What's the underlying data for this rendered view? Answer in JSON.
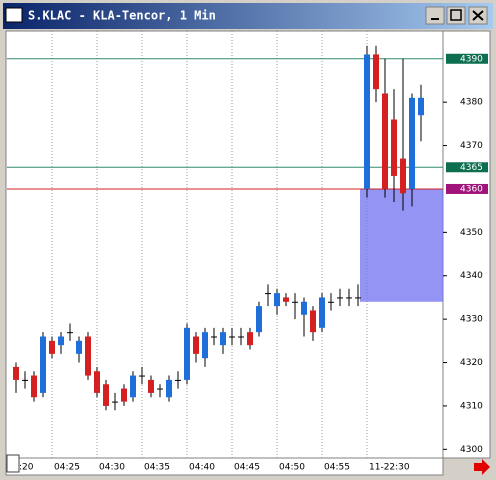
{
  "window": {
    "title": "S.KLAC - KLA-Tencor, 1 Min"
  },
  "chart_data": {
    "type": "candlestick",
    "ylim": [
      4298,
      4396.4
    ],
    "yticks": [
      4300,
      4310,
      4320,
      4330,
      4340,
      4350,
      4370,
      4380
    ],
    "xticks": [
      {
        "value": -1,
        "label": ":20"
      },
      {
        "value": 4,
        "label": "04:25"
      },
      {
        "value": 9,
        "label": "04:30"
      },
      {
        "value": 14,
        "label": "04:35"
      },
      {
        "value": 19,
        "label": "04:40"
      },
      {
        "value": 24,
        "label": "04:45"
      },
      {
        "value": 29,
        "label": "04:50"
      },
      {
        "value": 34,
        "label": "04:55"
      },
      {
        "value": 39,
        "label": "11-22:30"
      }
    ],
    "up_color": "#1e6fd9",
    "down_color": "#d42020",
    "open": [
      4319,
      4316,
      4317,
      4313,
      4325,
      4324,
      4327,
      4322,
      4326,
      4318,
      4315,
      4311,
      4314,
      4312,
      4317,
      4316,
      4314,
      4312,
      4316,
      4316,
      4326,
      4321,
      4326,
      4324,
      4326,
      4326,
      4327,
      4327,
      4336,
      4333,
      4335,
      4334,
      4331,
      4332,
      4328,
      4334,
      4335,
      4335,
      4335,
      4360,
      4391,
      4382,
      4376,
      4367,
      4360,
      4377
    ],
    "high": [
      4320,
      4318,
      4318,
      4327,
      4326,
      4327,
      4329,
      4326,
      4327,
      4319,
      4316,
      4313,
      4315,
      4318,
      4319,
      4317,
      4315,
      4317,
      4318,
      4329,
      4327,
      4328,
      4328,
      4328,
      4328,
      4328,
      4328,
      4334,
      4338,
      4337,
      4336,
      4336,
      4335,
      4333,
      4336,
      4336,
      4337,
      4337,
      4338,
      4393,
      4393,
      4390,
      4383,
      4390,
      4382,
      4384
    ],
    "low": [
      4313,
      4314,
      4311,
      4312,
      4321,
      4322,
      4325,
      4320,
      4316,
      4312,
      4309,
      4309,
      4310,
      4311,
      4315,
      4312,
      4312,
      4311,
      4314,
      4315,
      4320,
      4319,
      4324,
      4322,
      4324,
      4324,
      4323,
      4326,
      4333,
      4331,
      4333,
      4330,
      4326,
      4325,
      4327,
      4332,
      4333,
      4333,
      4333,
      4358,
      4380,
      4358,
      4357,
      4355,
      4356,
      4371
    ],
    "close": [
      4316,
      4316,
      4312,
      4326,
      4322,
      4326,
      4327,
      4325,
      4317,
      4313,
      4310,
      4311,
      4311,
      4317,
      4317,
      4313,
      4314,
      4316,
      4316,
      4328,
      4322,
      4327,
      4326,
      4327,
      4326,
      4326,
      4324,
      4333,
      4336,
      4336,
      4334,
      4334,
      4334,
      4327,
      4335,
      4334,
      4335,
      4335,
      4335,
      4391,
      4383,
      4360,
      4363,
      4359,
      4381,
      4381
    ],
    "levels": [
      {
        "label": "4390",
        "value": 4390,
        "color": "#2e8b6e"
      },
      {
        "label": "4365",
        "value": 4365,
        "color": "#2e8b6e"
      },
      {
        "label": "4360",
        "value": 4360,
        "color": "#d42020"
      }
    ],
    "zone": {
      "top": 4360,
      "bottom": 4334,
      "color": "#7070f0"
    }
  }
}
